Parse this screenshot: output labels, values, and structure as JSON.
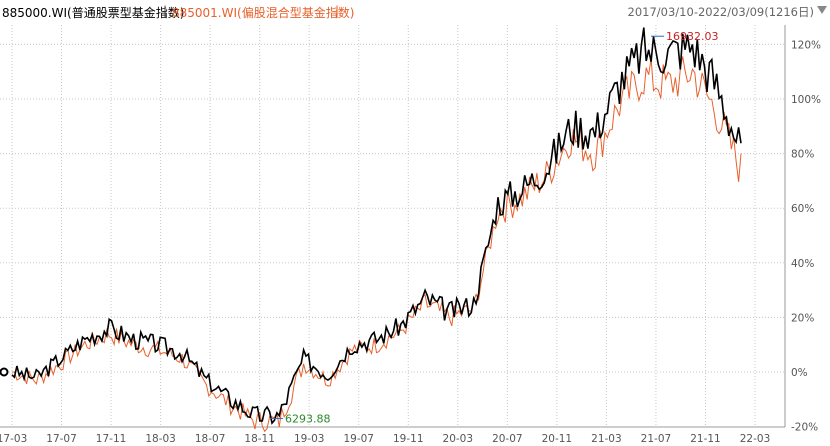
{
  "header": {
    "series1_label": "885000.WI(普通股票型基金指数)",
    "series2_label": "885001.WI(偏股混合型基金指数)",
    "separator": "|",
    "range_label": "2017/03/10-2022/03/09(1216日)"
  },
  "colors": {
    "series1": "#000000",
    "series2": "#e8602c",
    "max_marker": "#cc2222",
    "min_marker": "#2a8a2a",
    "grid": "#c8c8c8"
  },
  "icons": {
    "dropdown": "triangle-down-icon"
  },
  "chart_data": {
    "type": "line",
    "title": "",
    "xlabel": "",
    "ylabel": "",
    "ylim": [
      -20,
      125
    ],
    "y_ticks": [
      120,
      100,
      80,
      60,
      40,
      20,
      0,
      -20
    ],
    "y_tick_labels": [
      "120%",
      "100%",
      "80%",
      "60%",
      "40%",
      "20%",
      "0%",
      "-20%"
    ],
    "x_tick_labels": [
      "17-03",
      "17-07",
      "17-11",
      "18-03",
      "18-07",
      "18-11",
      "19-03",
      "19-07",
      "19-11",
      "20-03",
      "20-07",
      "20-11",
      "21-03",
      "21-07",
      "21-11",
      "22-03"
    ],
    "grid": true,
    "legend_position": "top-left",
    "annotations": {
      "max": {
        "label": "16932.03",
        "x": "21-06",
        "y": 123
      },
      "min": {
        "label": "6293.88",
        "x": "18-12",
        "y": -17
      }
    },
    "x": [
      "17-03",
      "17-05",
      "17-07",
      "17-09",
      "17-11",
      "18-01",
      "18-03",
      "18-05",
      "18-07",
      "18-09",
      "18-11",
      "19-01",
      "19-03",
      "19-05",
      "19-07",
      "19-09",
      "19-11",
      "20-01",
      "20-03",
      "20-05",
      "20-07",
      "20-09",
      "20-11",
      "21-01",
      "21-03",
      "21-05",
      "21-07",
      "21-09",
      "21-11",
      "22-01",
      "22-03"
    ],
    "series": [
      {
        "name": "885000.WI(普通股票型基金指数)",
        "values": [
          0,
          -2,
          5,
          12,
          16,
          12,
          10,
          7,
          -3,
          -10,
          -16,
          -16,
          5,
          -1,
          10,
          12,
          17,
          27,
          22,
          25,
          62,
          67,
          75,
          90,
          88,
          106,
          118,
          117,
          120,
          105,
          81
        ]
      },
      {
        "name": "885001.WI(偏股混合型基金指数)",
        "values": [
          0,
          -3,
          3,
          10,
          14,
          10,
          8,
          5,
          -5,
          -12,
          -18,
          -18,
          3,
          -3,
          8,
          10,
          15,
          25,
          20,
          23,
          59,
          64,
          72,
          86,
          80,
          98,
          108,
          105,
          110,
          95,
          74
        ]
      }
    ]
  }
}
